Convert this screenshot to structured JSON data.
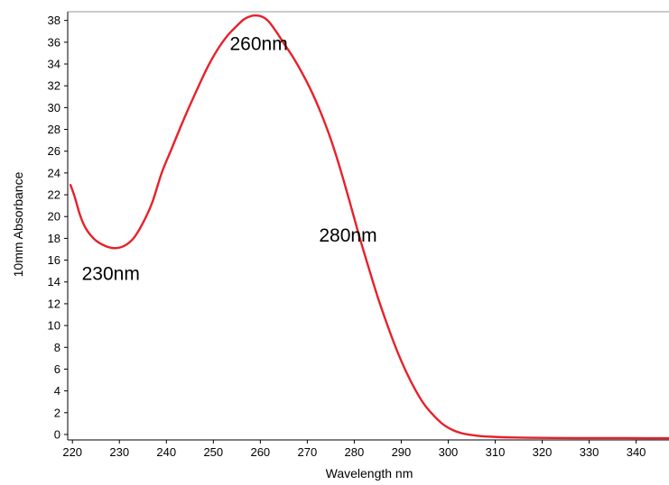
{
  "chart_data": {
    "type": "line",
    "xlabel": "Wavelength nm",
    "ylabel": "10mm Absorbance",
    "xlim": [
      219,
      347
    ],
    "ylim": [
      -0.5,
      38.8
    ],
    "grid": false,
    "line_color": "#e8202a",
    "x_ticks": [
      "220",
      "230",
      "240",
      "250",
      "260",
      "270",
      "280",
      "290",
      "300",
      "310",
      "320",
      "330",
      "340"
    ],
    "y_ticks": [
      "0",
      "2",
      "4",
      "6",
      "8",
      "10",
      "12",
      "14",
      "16",
      "18",
      "20",
      "22",
      "24",
      "26",
      "28",
      "30",
      "32",
      "34",
      "36",
      "38"
    ],
    "series": [
      {
        "x": [
          219.6,
          220.5,
          221.5,
          222.5,
          223.5,
          225,
          227,
          229,
          231,
          233,
          235,
          237,
          239,
          241,
          243,
          245,
          247,
          249,
          251,
          253,
          255,
          256.5,
          258,
          259,
          260,
          261,
          262,
          263.5,
          265,
          267,
          269,
          271,
          273,
          275,
          277,
          279,
          281,
          283,
          285,
          287,
          289,
          291,
          293,
          295,
          297,
          299,
          301,
          303,
          305,
          307,
          310,
          313,
          317,
          322,
          328,
          335,
          342,
          347
        ],
        "y": [
          22.9,
          21.8,
          20.3,
          19.2,
          18.5,
          17.8,
          17.3,
          17.1,
          17.3,
          18.0,
          19.4,
          21.3,
          24.0,
          26.1,
          28.2,
          30.2,
          32.1,
          33.9,
          35.4,
          36.6,
          37.5,
          38.1,
          38.4,
          38.45,
          38.4,
          38.2,
          37.8,
          36.9,
          35.9,
          34.6,
          33.1,
          31.4,
          29.4,
          27.1,
          24.4,
          21.4,
          18.3,
          15.4,
          12.6,
          10.1,
          7.8,
          5.8,
          4.1,
          2.7,
          1.7,
          0.9,
          0.4,
          0.1,
          -0.05,
          -0.15,
          -0.22,
          -0.27,
          -0.3,
          -0.32,
          -0.33,
          -0.33,
          -0.34,
          -0.34
        ]
      }
    ],
    "annotations": [
      {
        "text": "230nm",
        "x": 222,
        "y": 14.2
      },
      {
        "text": "260nm",
        "x": 253.5,
        "y": 35.3
      },
      {
        "text": "280nm",
        "x": 272.5,
        "y": 17.7
      }
    ]
  }
}
